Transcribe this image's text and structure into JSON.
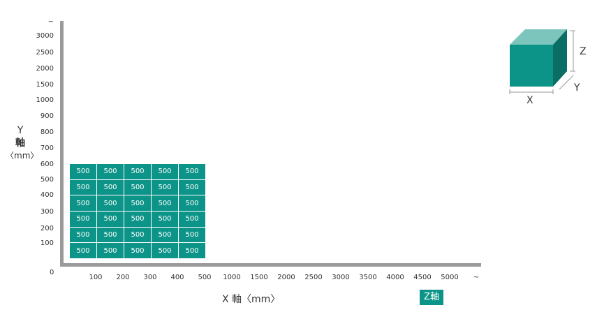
{
  "y_axis": {
    "title_parts": [
      "Y",
      "軸",
      "〈mm〉"
    ],
    "ticks": [
      "~",
      "3000",
      "2500",
      "2000",
      "1500",
      "1000",
      "900",
      "800",
      "700",
      "600",
      "500",
      "400",
      "300",
      "200",
      "100"
    ]
  },
  "x_axis": {
    "title": "X 軸〈mm〉",
    "origin": "0",
    "ticks": [
      "100",
      "200",
      "300",
      "400",
      "500",
      "1000",
      "1500",
      "2000",
      "2500",
      "3000",
      "3500",
      "4000",
      "4500",
      "5000",
      "~"
    ]
  },
  "z_axis": {
    "label": "Z軸"
  },
  "grid": {
    "cells": [
      [
        "500",
        "500",
        "500",
        "500",
        "500"
      ],
      [
        "500",
        "500",
        "500",
        "500",
        "500"
      ],
      [
        "500",
        "500",
        "500",
        "500",
        "500"
      ],
      [
        "500",
        "500",
        "500",
        "500",
        "500"
      ],
      [
        "500",
        "500",
        "500",
        "500",
        "500"
      ],
      [
        "500",
        "500",
        "500",
        "500",
        "500"
      ]
    ]
  },
  "cube": {
    "x_label": "X",
    "y_label": "Y",
    "z_label": "Z"
  },
  "colors": {
    "accent": "#0d9488",
    "accent_light": "#7cc5bd",
    "accent_dark": "#0a6e66",
    "axis": "#9a9a9a"
  }
}
